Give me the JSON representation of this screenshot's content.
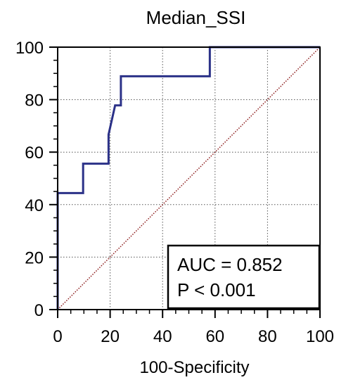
{
  "chart_data": {
    "type": "line",
    "title": "Median_SSI",
    "xlabel": "100-Specificity",
    "ylabel": "",
    "xlim": [
      0,
      100
    ],
    "ylim": [
      0,
      100
    ],
    "x_ticks": [
      "0",
      "20",
      "40",
      "60",
      "80",
      "100"
    ],
    "y_ticks": [
      "0",
      "20",
      "40",
      "60",
      "80",
      "100"
    ],
    "grid": true,
    "series": [
      {
        "color": "#2b3188",
        "x": [
          0,
          0,
          9.7,
          9.7,
          19.4,
          19.4,
          21.9,
          21.9,
          24.1,
          24.1,
          58.0,
          58.0,
          100
        ],
        "y": [
          0,
          44.4,
          44.4,
          55.6,
          55.6,
          66.7,
          77.8,
          77.8,
          77.8,
          88.9,
          88.9,
          100,
          100
        ]
      },
      {
        "color": "#8b1a1a",
        "style": "dotted",
        "x": [
          0,
          100
        ],
        "y": [
          0,
          100
        ]
      }
    ],
    "annotation": {
      "lines": [
        "AUC = 0.852",
        "P < 0.001"
      ]
    }
  }
}
